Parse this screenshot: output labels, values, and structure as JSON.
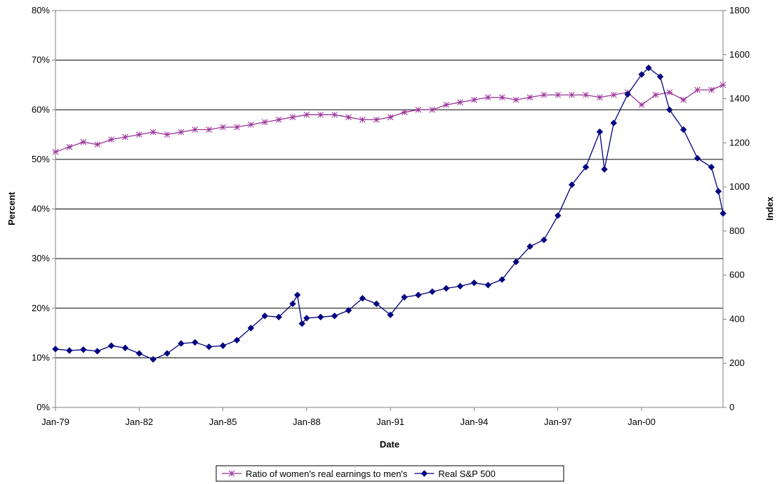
{
  "chart_data": {
    "type": "line",
    "title": "",
    "xlabel": "Date",
    "ylabel_left": "Percent",
    "ylabel_right": "Index",
    "x_tick_labels": [
      "Jan-79",
      "Jan-82",
      "Jan-85",
      "Jan-88",
      "Jan-91",
      "Jan-94",
      "Jan-97",
      "Jan-00"
    ],
    "x_range": [
      "1979-01",
      "2002-12"
    ],
    "left_axis": {
      "range": [
        0,
        80
      ],
      "ticks": [
        0,
        10,
        20,
        30,
        40,
        50,
        60,
        70,
        80
      ],
      "tick_labels": [
        "0%",
        "10%",
        "20%",
        "30%",
        "40%",
        "50%",
        "60%",
        "70%",
        "80%"
      ]
    },
    "right_axis": {
      "range": [
        0,
        1800
      ],
      "ticks": [
        0,
        200,
        400,
        600,
        800,
        1000,
        1200,
        1400,
        1600,
        1800
      ],
      "tick_labels": [
        "0",
        "200",
        "400",
        "600",
        "800",
        "1000",
        "1200",
        "1400",
        "1600",
        "1800"
      ]
    },
    "gridlines": "horizontal",
    "legend_position": "bottom",
    "series": [
      {
        "name": "Ratio of women's real earnings to men's",
        "axis": "left",
        "color": "#993399",
        "marker": "asterisk",
        "x": [
          "1979-01",
          "1979-07",
          "1980-01",
          "1980-07",
          "1981-01",
          "1981-07",
          "1982-01",
          "1982-07",
          "1983-01",
          "1983-07",
          "1984-01",
          "1984-07",
          "1985-01",
          "1985-07",
          "1986-01",
          "1986-07",
          "1987-01",
          "1987-07",
          "1988-01",
          "1988-07",
          "1989-01",
          "1989-07",
          "1990-01",
          "1990-07",
          "1991-01",
          "1991-07",
          "1992-01",
          "1992-07",
          "1993-01",
          "1993-07",
          "1994-01",
          "1994-07",
          "1995-01",
          "1995-07",
          "1996-01",
          "1996-07",
          "1997-01",
          "1997-07",
          "1998-01",
          "1998-07",
          "1999-01",
          "1999-07",
          "2000-01",
          "2000-07",
          "2001-01",
          "2001-07",
          "2002-01",
          "2002-07",
          "2002-12"
        ],
        "values": [
          51.5,
          52.5,
          53.5,
          53,
          54,
          54.5,
          55,
          55.5,
          55,
          55.5,
          56,
          56,
          56.5,
          56.5,
          57,
          57.5,
          58,
          58.5,
          59,
          59,
          59,
          58.5,
          58,
          58,
          58.5,
          59.5,
          60,
          60,
          61,
          61.5,
          62,
          62.5,
          62.5,
          62,
          62.5,
          63,
          63,
          63,
          63,
          62.5,
          63,
          63.5,
          61,
          63,
          63.5,
          62,
          64,
          64,
          65
        ]
      },
      {
        "name": "Real S&P 500",
        "axis": "right",
        "color": "#000080",
        "marker": "diamond",
        "x": [
          "1979-01",
          "1979-07",
          "1980-01",
          "1980-07",
          "1981-01",
          "1981-07",
          "1982-01",
          "1982-07",
          "1983-01",
          "1983-07",
          "1984-01",
          "1984-07",
          "1985-01",
          "1985-07",
          "1986-01",
          "1986-07",
          "1987-01",
          "1987-07",
          "1987-09",
          "1987-11",
          "1988-01",
          "1988-07",
          "1989-01",
          "1989-07",
          "1990-01",
          "1990-07",
          "1991-01",
          "1991-07",
          "1992-01",
          "1992-07",
          "1993-01",
          "1993-07",
          "1994-01",
          "1994-07",
          "1995-01",
          "1995-07",
          "1996-01",
          "1996-07",
          "1997-01",
          "1997-07",
          "1998-01",
          "1998-07",
          "1998-09",
          "1999-01",
          "1999-07",
          "2000-01",
          "2000-04",
          "2000-09",
          "2001-01",
          "2001-07",
          "2002-01",
          "2002-07",
          "2002-10",
          "2002-12"
        ],
        "values": [
          265,
          258,
          262,
          255,
          280,
          270,
          245,
          218,
          245,
          290,
          295,
          275,
          280,
          305,
          360,
          415,
          410,
          470,
          510,
          380,
          405,
          410,
          415,
          440,
          495,
          470,
          420,
          500,
          510,
          525,
          540,
          550,
          565,
          555,
          580,
          660,
          730,
          760,
          870,
          1010,
          1090,
          1250,
          1080,
          1290,
          1420,
          1510,
          1540,
          1500,
          1350,
          1260,
          1130,
          1090,
          980,
          880
        ]
      }
    ]
  }
}
